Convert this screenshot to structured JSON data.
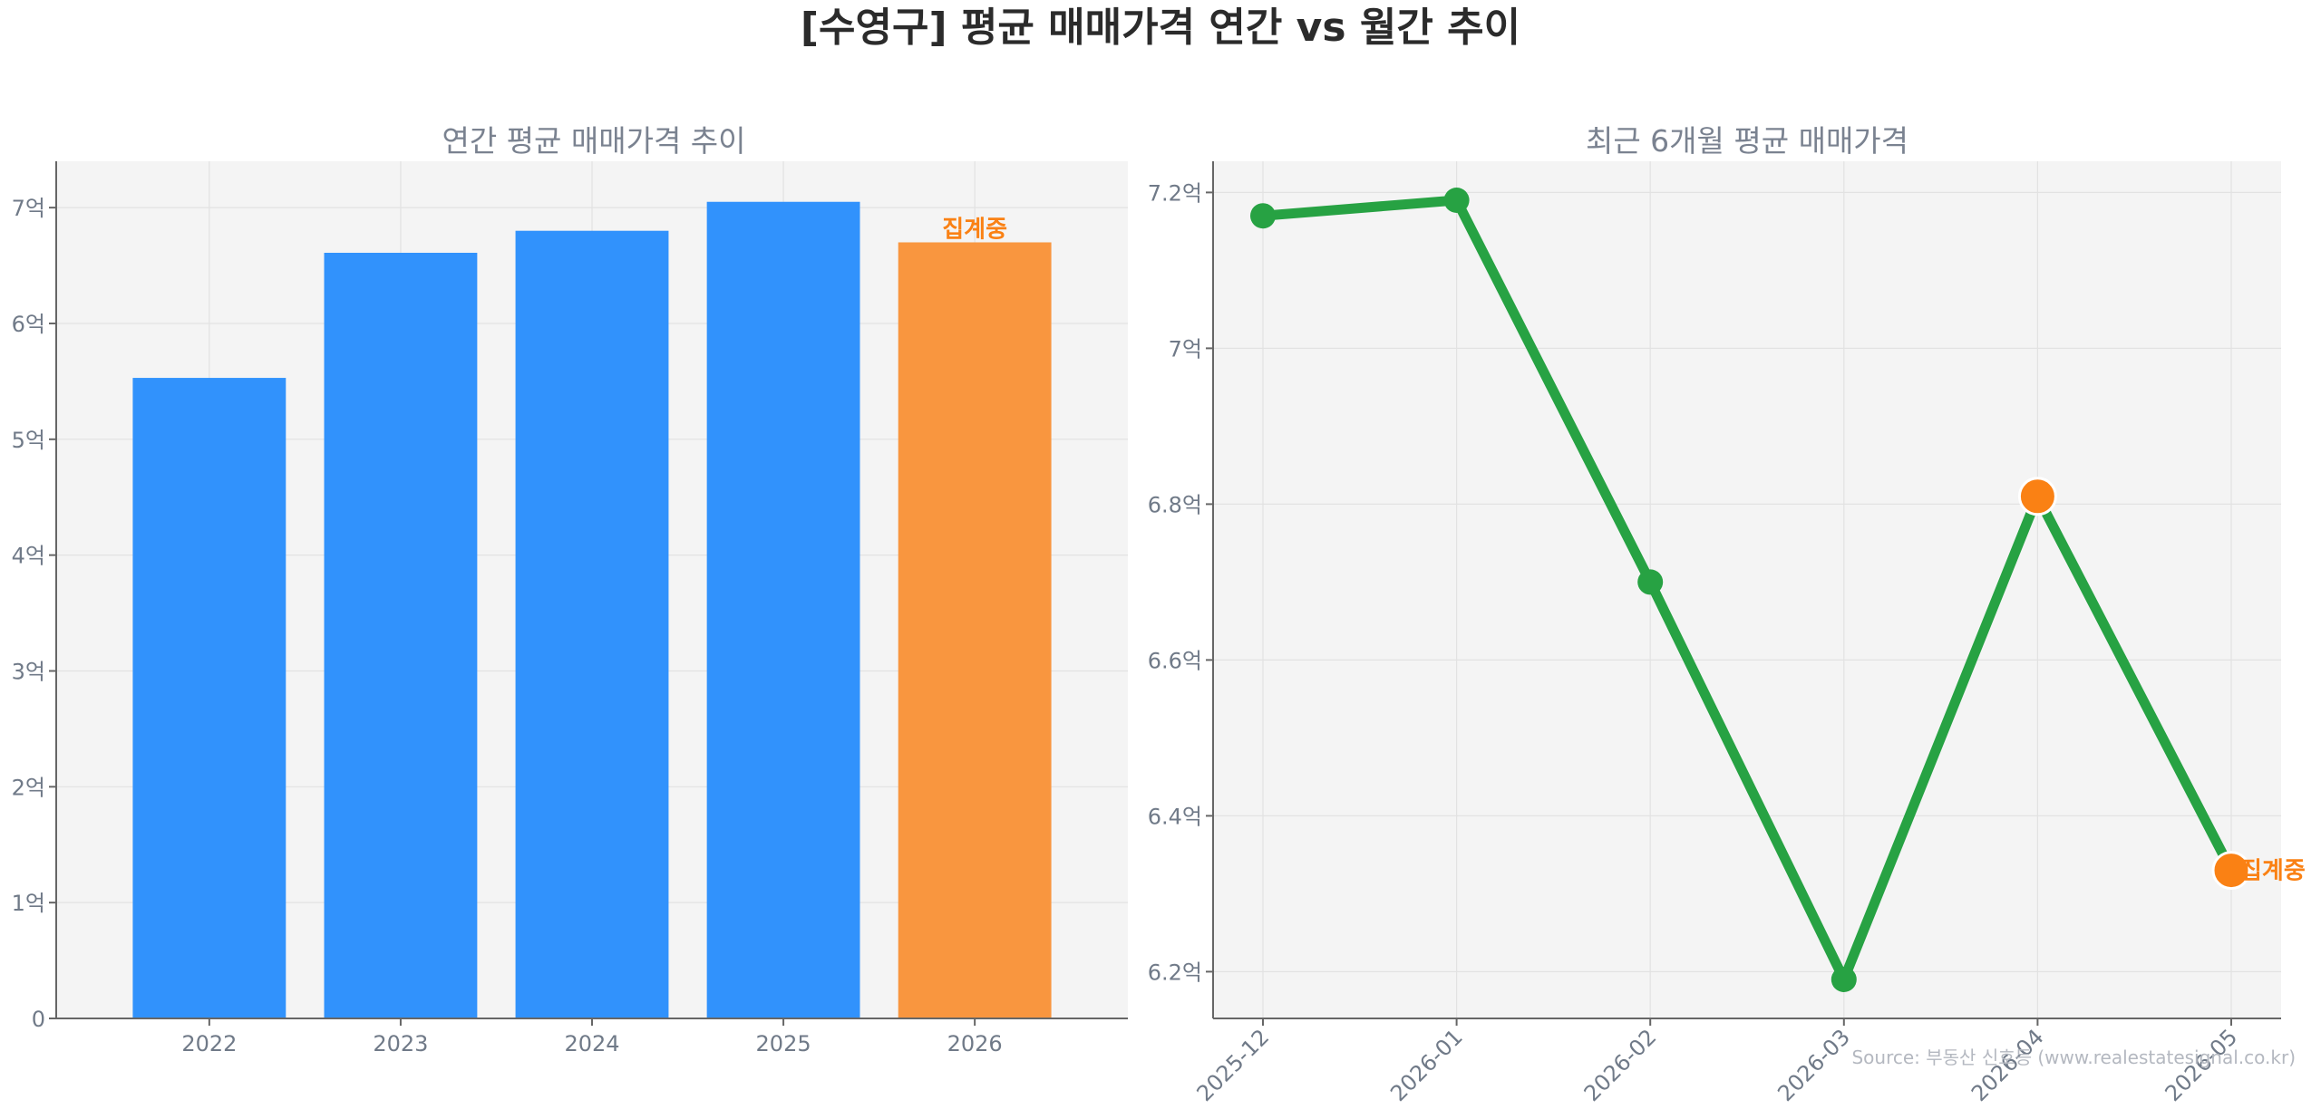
{
  "title": "[수영구] 평균 매매가격 연간 vs 월간 추이",
  "source": "Source: 부동산 신호등 (www.realestatesignal.co.kr)",
  "colors": {
    "bar": "#3192fc",
    "bar_partial": "#f9963f",
    "line": "#27a243",
    "point_highlight": "#fa8114",
    "note": "#fa8114"
  },
  "chart_data": [
    {
      "type": "bar",
      "title": "연간 평균 매매가격 추이",
      "categories": [
        "2022",
        "2023",
        "2024",
        "2025",
        "2026"
      ],
      "values": [
        5.53,
        6.61,
        6.8,
        7.05,
        6.7
      ],
      "unit": "억",
      "ylim": [
        0,
        7.4
      ],
      "yticks": [
        0,
        1,
        2,
        3,
        4,
        5,
        6,
        7
      ],
      "ytick_labels": [
        "0",
        "1억",
        "2억",
        "3억",
        "4억",
        "5억",
        "6억",
        "7억"
      ],
      "highlight_index": 4,
      "highlight_label": "집계중",
      "grid": true
    },
    {
      "type": "line",
      "title": "최근 6개월 평균 매매가격",
      "x": [
        "2025-12",
        "2026-01",
        "2026-02",
        "2026-03",
        "2026-04",
        "2026-05"
      ],
      "values": [
        7.17,
        7.19,
        6.7,
        6.19,
        6.81,
        6.33
      ],
      "unit": "억",
      "ylim": [
        6.14,
        7.24
      ],
      "yticks": [
        6.2,
        6.4,
        6.6,
        6.8,
        7.0,
        7.2
      ],
      "ytick_labels": [
        "6.2억",
        "6.4억",
        "6.6억",
        "6.8억",
        "7억",
        "7.2억"
      ],
      "highlight_indices": [
        4,
        5
      ],
      "last_point_label": "집계중",
      "grid": true
    }
  ]
}
